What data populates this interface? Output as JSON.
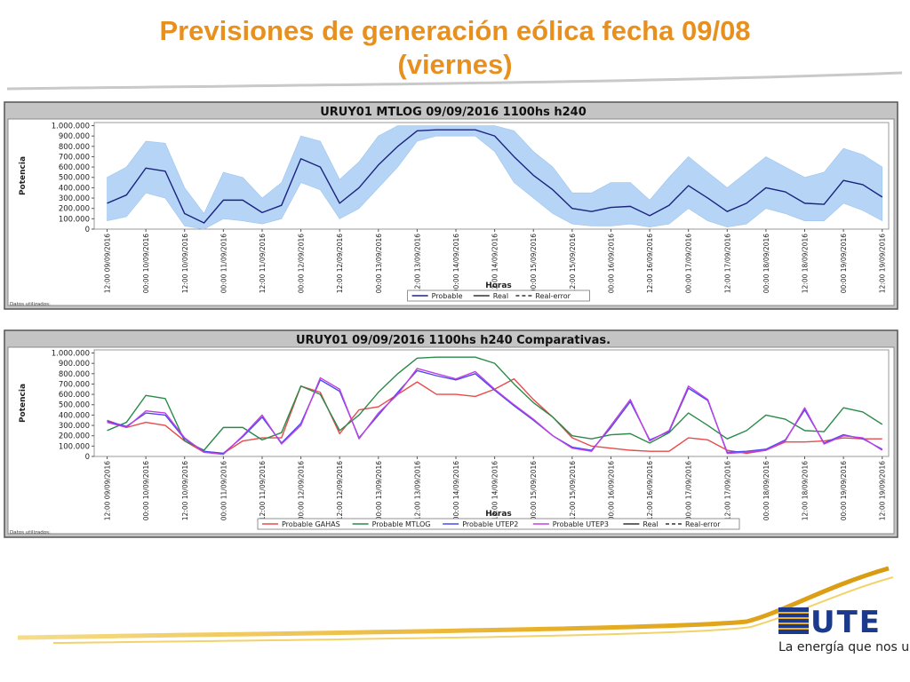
{
  "slide": {
    "title": "Previsiones de generación eólica fecha 09/08 (viernes)",
    "logo": "UTE",
    "tagline": "La energía que nos une"
  },
  "chart_data": [
    {
      "type": "line",
      "title": "URUY01  MTLOG  09/09/2016  1100hs   h240",
      "ylabel": "Potencia",
      "xlabel": "Horas",
      "footnote": "Datos utilizados:",
      "x": [
        0,
        6,
        12,
        18,
        24,
        30,
        36,
        42,
        48,
        54,
        60,
        66,
        72,
        78,
        84,
        90,
        96,
        102,
        108,
        114,
        120,
        126,
        132,
        138,
        144,
        150,
        156,
        162,
        168,
        174,
        180,
        186,
        192,
        198,
        204,
        210,
        216,
        222,
        228,
        234,
        240
      ],
      "xlim": [
        -4,
        242
      ],
      "xticks": [
        {
          "value": 0,
          "label": "12:00 09/09/2016"
        },
        {
          "value": 12,
          "label": "00:00 10/09/2016"
        },
        {
          "value": 24,
          "label": "12:00 10/09/2016"
        },
        {
          "value": 36,
          "label": "00:00 11/09/2016"
        },
        {
          "value": 48,
          "label": "12:00 11/09/2016"
        },
        {
          "value": 60,
          "label": "00:00 12/09/2016"
        },
        {
          "value": 72,
          "label": "12:00 12/09/2016"
        },
        {
          "value": 84,
          "label": "00:00 13/09/2016"
        },
        {
          "value": 96,
          "label": "12:00 13/09/2016"
        },
        {
          "value": 108,
          "label": "00:00 14/09/2016"
        },
        {
          "value": 120,
          "label": "12:00 14/09/2016"
        },
        {
          "value": 132,
          "label": "00:00 15/09/2016"
        },
        {
          "value": 144,
          "label": "12:00 15/09/2016"
        },
        {
          "value": 156,
          "label": "00:00 16/09/2016"
        },
        {
          "value": 168,
          "label": "12:00 16/09/2016"
        },
        {
          "value": 180,
          "label": "00:00 17/09/2016"
        },
        {
          "value": 192,
          "label": "12:00 17/09/2016"
        },
        {
          "value": 204,
          "label": "00:00 18/09/2016"
        },
        {
          "value": 216,
          "label": "12:00 18/09/2016"
        },
        {
          "value": 228,
          "label": "00:00 19/09/2016"
        },
        {
          "value": 240,
          "label": "12:00 19/09/2016"
        }
      ],
      "ylim": [
        0,
        1030000
      ],
      "yticks": [
        0,
        {
          "value": 100000,
          "label": "100.000"
        },
        {
          "value": 200000,
          "label": "200.000"
        },
        {
          "value": 300000,
          "label": "300.000"
        },
        {
          "value": 400000,
          "label": "400.000"
        },
        {
          "value": 500000,
          "label": "500.000"
        },
        {
          "value": 600000,
          "label": "600.000"
        },
        {
          "value": 700000,
          "label": "700.000"
        },
        {
          "value": 800000,
          "label": "800.000"
        },
        {
          "value": 900000,
          "label": "900.000"
        },
        {
          "value": 1000000,
          "label": "1.000.000"
        }
      ],
      "band": {
        "color": "#b6d5f6",
        "upper": [
          500000,
          600000,
          850000,
          830000,
          400000,
          150000,
          550000,
          500000,
          300000,
          450000,
          900000,
          850000,
          480000,
          650000,
          900000,
          1000000,
          1000000,
          1000000,
          1000000,
          1000000,
          1000000,
          950000,
          750000,
          600000,
          350000,
          350000,
          450000,
          450000,
          280000,
          500000,
          700000,
          550000,
          400000,
          550000,
          700000,
          600000,
          500000,
          550000,
          780000,
          720000,
          600000
        ],
        "lower": [
          80000,
          120000,
          350000,
          300000,
          30000,
          0,
          100000,
          80000,
          50000,
          100000,
          450000,
          380000,
          100000,
          200000,
          400000,
          600000,
          850000,
          900000,
          900000,
          900000,
          750000,
          450000,
          300000,
          150000,
          50000,
          30000,
          30000,
          50000,
          20000,
          50000,
          200000,
          80000,
          20000,
          50000,
          200000,
          150000,
          80000,
          80000,
          250000,
          180000,
          80000
        ]
      },
      "series": [
        {
          "name": "Probable",
          "color": "#1a237e",
          "values": [
            250000,
            330000,
            590000,
            560000,
            150000,
            60000,
            280000,
            280000,
            160000,
            230000,
            680000,
            600000,
            250000,
            400000,
            620000,
            800000,
            950000,
            960000,
            960000,
            960000,
            900000,
            700000,
            520000,
            380000,
            200000,
            170000,
            210000,
            220000,
            130000,
            230000,
            420000,
            300000,
            170000,
            250000,
            400000,
            360000,
            250000,
            240000,
            470000,
            430000,
            310000
          ]
        },
        {
          "name": "Real",
          "color": "#333333",
          "values": [
            null,
            null,
            null,
            null,
            null,
            null,
            null,
            null,
            null,
            null,
            null,
            null,
            null,
            null,
            null,
            null,
            null,
            null,
            null,
            null,
            null,
            null,
            null,
            null,
            null,
            null,
            null,
            null,
            null,
            null,
            null,
            null,
            null,
            null,
            null,
            null,
            null,
            null,
            null,
            null,
            null
          ]
        },
        {
          "name": "Real-error",
          "color": "#333333",
          "style": "dashed",
          "values": [
            null,
            null,
            null,
            null,
            null,
            null,
            null,
            null,
            null,
            null,
            null,
            null,
            null,
            null,
            null,
            null,
            null,
            null,
            null,
            null,
            null,
            null,
            null,
            null,
            null,
            null,
            null,
            null,
            null,
            null,
            null,
            null,
            null,
            null,
            null,
            null,
            null,
            null,
            null,
            null,
            null
          ]
        }
      ]
    },
    {
      "type": "line",
      "title": "URUY01  09/09/2016  1100hs   h240  Comparativas.",
      "ylabel": "Potencia",
      "xlabel": "Horas",
      "footnote": "Datos utilizados:",
      "x": [
        0,
        6,
        12,
        18,
        24,
        30,
        36,
        42,
        48,
        54,
        60,
        66,
        72,
        78,
        84,
        90,
        96,
        102,
        108,
        114,
        120,
        126,
        132,
        138,
        144,
        150,
        156,
        162,
        168,
        174,
        180,
        186,
        192,
        198,
        204,
        210,
        216,
        222,
        228,
        234,
        240
      ],
      "xlim": [
        -4,
        242
      ],
      "xticks": [
        {
          "value": 0,
          "label": "12:00 09/09/2016"
        },
        {
          "value": 12,
          "label": "00:00 10/09/2016"
        },
        {
          "value": 24,
          "label": "12:00 10/09/2016"
        },
        {
          "value": 36,
          "label": "00:00 11/09/2016"
        },
        {
          "value": 48,
          "label": "12:00 11/09/2016"
        },
        {
          "value": 60,
          "label": "00:00 12/09/2016"
        },
        {
          "value": 72,
          "label": "12:00 12/09/2016"
        },
        {
          "value": 84,
          "label": "00:00 13/09/2016"
        },
        {
          "value": 96,
          "label": "12:00 13/09/2016"
        },
        {
          "value": 108,
          "label": "00:00 14/09/2016"
        },
        {
          "value": 120,
          "label": "12:00 14/09/2016"
        },
        {
          "value": 132,
          "label": "00:00 15/09/2016"
        },
        {
          "value": 144,
          "label": "12:00 15/09/2016"
        },
        {
          "value": 156,
          "label": "00:00 16/09/2016"
        },
        {
          "value": 168,
          "label": "12:00 16/09/2016"
        },
        {
          "value": 180,
          "label": "00:00 17/09/2016"
        },
        {
          "value": 192,
          "label": "12:00 17/09/2016"
        },
        {
          "value": 204,
          "label": "00:00 18/09/2016"
        },
        {
          "value": 216,
          "label": "12:00 18/09/2016"
        },
        {
          "value": 228,
          "label": "00:00 19/09/2016"
        },
        {
          "value": 240,
          "label": "12:00 19/09/2016"
        }
      ],
      "ylim": [
        0,
        1030000
      ],
      "yticks": [
        0,
        {
          "value": 100000,
          "label": "100.000"
        },
        {
          "value": 200000,
          "label": "200.000"
        },
        {
          "value": 300000,
          "label": "300.000"
        },
        {
          "value": 400000,
          "label": "400.000"
        },
        {
          "value": 500000,
          "label": "500.000"
        },
        {
          "value": 600000,
          "label": "600.000"
        },
        {
          "value": 700000,
          "label": "700.000"
        },
        {
          "value": 800000,
          "label": "800.000"
        },
        {
          "value": 900000,
          "label": "900.000"
        },
        {
          "value": 1000000,
          "label": "1.000.000"
        }
      ],
      "series": [
        {
          "name": "Probable GAHAS",
          "color": "#e84a4a",
          "values": [
            350000,
            280000,
            330000,
            300000,
            150000,
            40000,
            30000,
            150000,
            180000,
            180000,
            680000,
            620000,
            220000,
            450000,
            480000,
            600000,
            720000,
            600000,
            600000,
            580000,
            650000,
            750000,
            550000,
            380000,
            180000,
            100000,
            80000,
            60000,
            50000,
            50000,
            180000,
            160000,
            60000,
            30000,
            60000,
            140000,
            140000,
            150000,
            180000,
            170000,
            170000
          ]
        },
        {
          "name": "Probable MTLOG",
          "color": "#2a8a4a",
          "values": [
            250000,
            330000,
            590000,
            560000,
            150000,
            60000,
            280000,
            280000,
            160000,
            230000,
            680000,
            600000,
            250000,
            400000,
            620000,
            800000,
            950000,
            960000,
            960000,
            960000,
            900000,
            700000,
            520000,
            380000,
            200000,
            170000,
            210000,
            220000,
            130000,
            230000,
            420000,
            300000,
            170000,
            250000,
            400000,
            360000,
            250000,
            240000,
            470000,
            430000,
            310000
          ]
        },
        {
          "name": "Probable UTEP2",
          "color": "#4a4af0",
          "values": [
            340000,
            290000,
            420000,
            400000,
            170000,
            50000,
            30000,
            190000,
            380000,
            130000,
            320000,
            740000,
            630000,
            180000,
            400000,
            620000,
            830000,
            780000,
            740000,
            800000,
            640000,
            490000,
            350000,
            200000,
            90000,
            60000,
            280000,
            530000,
            160000,
            240000,
            660000,
            540000,
            40000,
            50000,
            70000,
            160000,
            450000,
            130000,
            210000,
            170000,
            70000
          ]
        },
        {
          "name": "Probable UTEP3",
          "color": "#c040e0",
          "values": [
            330000,
            280000,
            440000,
            420000,
            180000,
            40000,
            20000,
            200000,
            400000,
            120000,
            300000,
            760000,
            650000,
            170000,
            420000,
            600000,
            850000,
            800000,
            750000,
            820000,
            650000,
            500000,
            360000,
            200000,
            80000,
            50000,
            300000,
            550000,
            150000,
            250000,
            680000,
            550000,
            30000,
            40000,
            60000,
            150000,
            470000,
            120000,
            200000,
            180000,
            60000
          ]
        },
        {
          "name": "Real",
          "color": "#333333",
          "values": [
            null,
            null,
            null,
            null,
            null,
            null,
            null,
            null,
            null,
            null,
            null,
            null,
            null,
            null,
            null,
            null,
            null,
            null,
            null,
            null,
            null,
            null,
            null,
            null,
            null,
            null,
            null,
            null,
            null,
            null,
            null,
            null,
            null,
            null,
            null,
            null,
            null,
            null,
            null,
            null,
            null
          ]
        },
        {
          "name": "Real-error",
          "color": "#333333",
          "style": "dashed",
          "values": [
            null,
            null,
            null,
            null,
            null,
            null,
            null,
            null,
            null,
            null,
            null,
            null,
            null,
            null,
            null,
            null,
            null,
            null,
            null,
            null,
            null,
            null,
            null,
            null,
            null,
            null,
            null,
            null,
            null,
            null,
            null,
            null,
            null,
            null,
            null,
            null,
            null,
            null,
            null,
            null,
            null
          ]
        }
      ]
    }
  ]
}
